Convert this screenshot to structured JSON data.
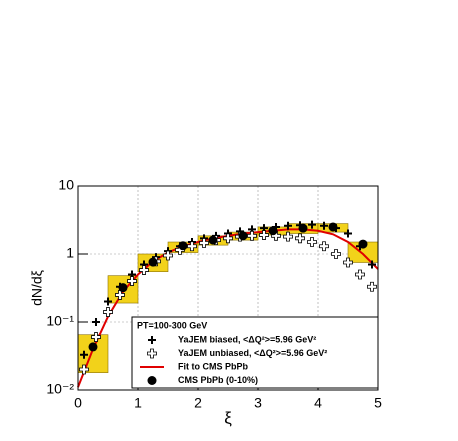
{
  "chart_data": {
    "type": "scatter",
    "log_y": true,
    "grid": true,
    "xlim": [
      0,
      5
    ],
    "ylim": [
      0.01,
      10
    ],
    "xticks": [
      0,
      1,
      2,
      3,
      4,
      5
    ],
    "yticks": [
      {
        "value": 0.01,
        "label": "10⁻²"
      },
      {
        "value": 0.1,
        "label": "10⁻¹"
      },
      1,
      10
    ],
    "x_label": "ξ",
    "y_label": "dN/dξ",
    "legend_title": "PT=100-300 GeV",
    "legend_position": "lower right",
    "series": [
      {
        "name": "YaJEM biased, <ΔQ²>=5.96 GeV²",
        "marker": "plus",
        "color": "#000000",
        "x": [
          0.1,
          0.3,
          0.5,
          0.7,
          0.9,
          1.1,
          1.3,
          1.5,
          1.7,
          1.9,
          2.1,
          2.3,
          2.5,
          2.7,
          2.9,
          3.1,
          3.3,
          3.5,
          3.7,
          3.9,
          4.1,
          4.3,
          4.5,
          4.7,
          4.9
        ],
        "values": [
          0.033,
          0.1,
          0.2,
          0.33,
          0.5,
          0.7,
          0.9,
          1.1,
          1.3,
          1.5,
          1.7,
          1.85,
          2.0,
          2.15,
          2.3,
          2.4,
          2.5,
          2.6,
          2.65,
          2.7,
          2.6,
          2.4,
          2.0,
          1.3,
          0.7
        ]
      },
      {
        "name": "YaJEM unbiased, <ΔQ²>=5.96 GeV²",
        "marker": "open-plus",
        "color": "#000000",
        "x": [
          0.1,
          0.3,
          0.5,
          0.7,
          0.9,
          1.1,
          1.3,
          1.5,
          1.7,
          1.9,
          2.1,
          2.3,
          2.5,
          2.7,
          2.9,
          3.1,
          3.3,
          3.5,
          3.7,
          3.9,
          4.1,
          4.3,
          4.5,
          4.7,
          4.9
        ],
        "values": [
          0.02,
          0.06,
          0.14,
          0.25,
          0.4,
          0.58,
          0.78,
          0.95,
          1.15,
          1.3,
          1.45,
          1.6,
          1.7,
          1.8,
          1.85,
          1.9,
          1.85,
          1.8,
          1.7,
          1.5,
          1.3,
          1.0,
          0.75,
          0.5,
          0.33
        ]
      },
      {
        "name": "Fit to CMS PbPb",
        "marker": "line",
        "color": "#e00000",
        "x": [
          0,
          0.25,
          0.5,
          0.75,
          1,
          1.25,
          1.5,
          1.75,
          2,
          2.25,
          2.5,
          2.75,
          3,
          3.25,
          3.5,
          3.75,
          4,
          4.25,
          4.5,
          4.75,
          5
        ],
        "values": [
          0.011,
          0.04,
          0.12,
          0.28,
          0.5,
          0.78,
          1.05,
          1.3,
          1.5,
          1.7,
          1.85,
          2.0,
          2.1,
          2.2,
          2.3,
          2.3,
          2.2,
          1.95,
          1.5,
          1.0,
          0.6
        ]
      },
      {
        "name": "CMS PbPb (0-10%)",
        "marker": "circle",
        "color": "#000000",
        "box_color": "#f2d21a",
        "x": [
          0.25,
          0.75,
          1.25,
          1.75,
          2.25,
          2.75,
          3.25,
          3.75,
          4.25,
          4.75
        ],
        "values": [
          0.043,
          0.32,
          0.76,
          1.32,
          1.6,
          1.85,
          2.2,
          2.4,
          2.5,
          1.4
        ],
        "lower": [
          0.018,
          0.19,
          0.55,
          1.05,
          1.35,
          1.6,
          1.9,
          2.0,
          2.1,
          0.75
        ],
        "upper": [
          0.065,
          0.48,
          1.0,
          1.5,
          1.85,
          2.1,
          2.5,
          2.8,
          2.8,
          1.5
        ],
        "xerr": 0.25
      }
    ]
  }
}
